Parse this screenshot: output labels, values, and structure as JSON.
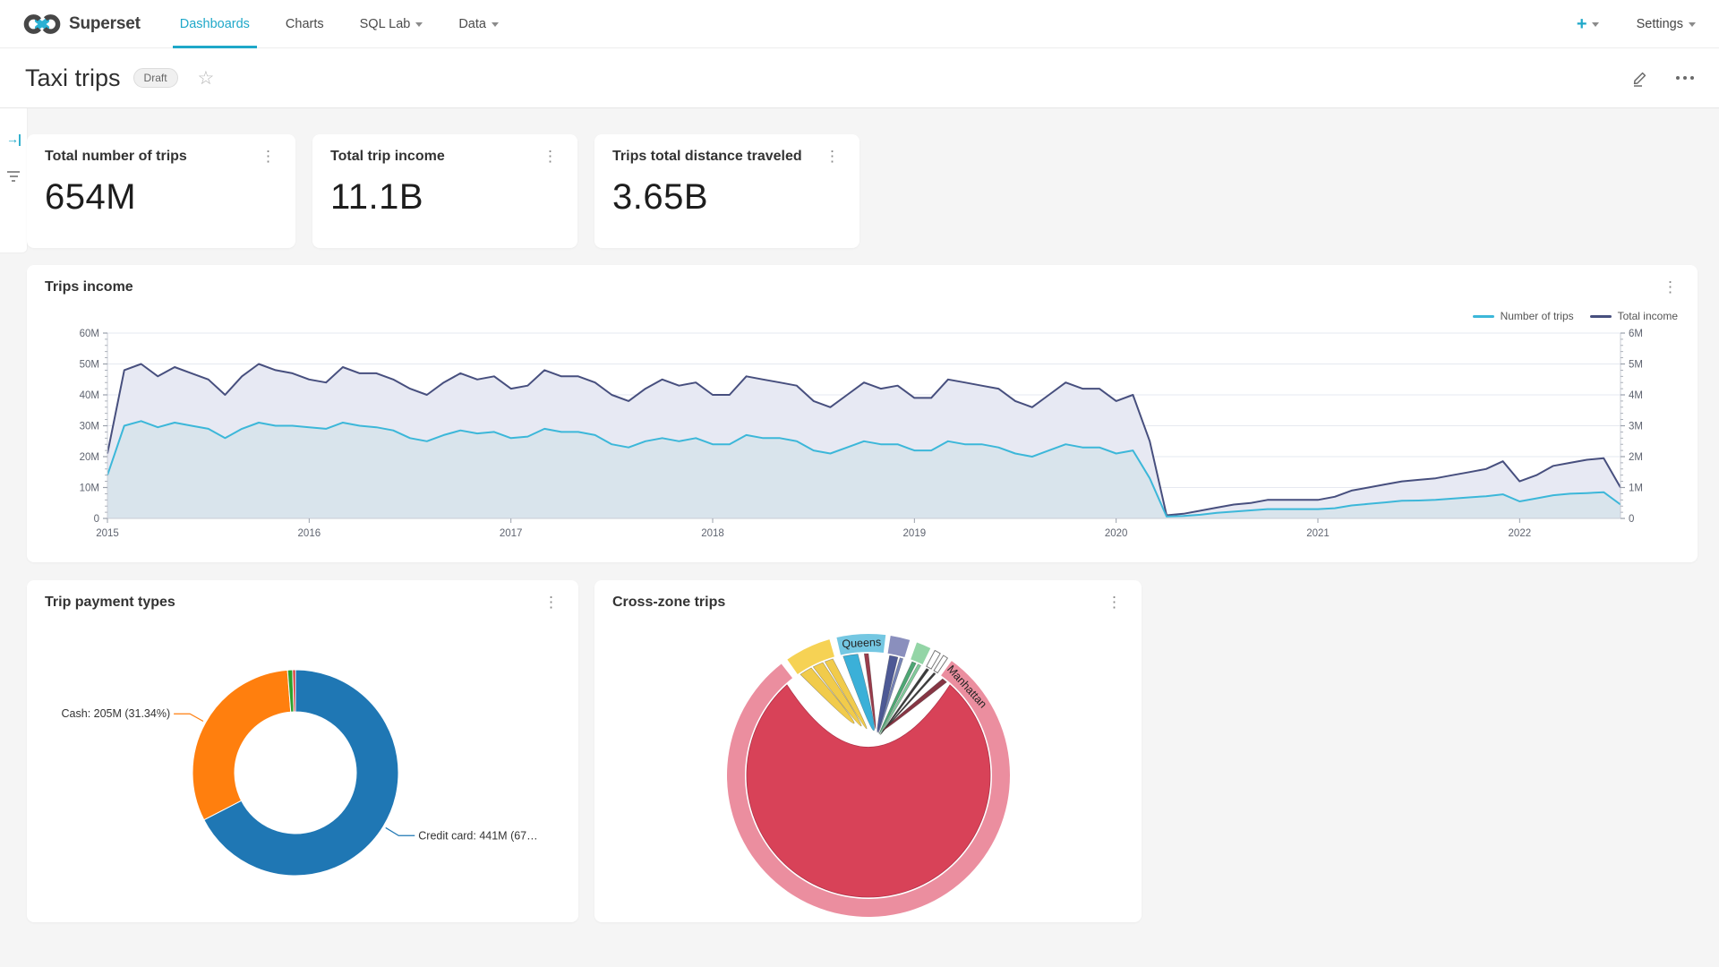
{
  "nav": {
    "brand": "Superset",
    "items": [
      {
        "label": "Dashboards",
        "active": true,
        "caret": false
      },
      {
        "label": "Charts",
        "active": false,
        "caret": false
      },
      {
        "label": "SQL Lab",
        "active": false,
        "caret": true
      },
      {
        "label": "Data",
        "active": false,
        "caret": true
      }
    ],
    "plus_label": "+",
    "settings_label": "Settings"
  },
  "header": {
    "title": "Taxi trips",
    "status_badge": "Draft"
  },
  "icons": {
    "kebab": "⋮",
    "star": "☆",
    "expand": "→|"
  },
  "colors": {
    "accent": "#1fa8c9",
    "card_bg": "#ffffff",
    "page_bg": "#f5f5f5"
  },
  "kpis": [
    {
      "title": "Total number of trips",
      "value": "654M"
    },
    {
      "title": "Total trip income",
      "value": "11.1B"
    },
    {
      "title": "Trips total distance traveled",
      "value": "3.65B"
    }
  ],
  "trips_income_card": {
    "title": "Trips income"
  },
  "payment_card": {
    "title": "Trip payment types"
  },
  "crosszone_card": {
    "title": "Cross-zone trips"
  },
  "chart_data": [
    {
      "id": "trips_income",
      "type": "line",
      "title": "Trips income",
      "x_tick_labels": [
        "2015",
        "2016",
        "2017",
        "2018",
        "2019",
        "2020",
        "2021",
        "2022"
      ],
      "x_tick_index": [
        0,
        12,
        24,
        36,
        48,
        60,
        72,
        84
      ],
      "y_left": {
        "min": 0,
        "max": 60,
        "ticks": [
          "0",
          "10M",
          "20M",
          "30M",
          "40M",
          "50M",
          "60M"
        ]
      },
      "y_right": {
        "min": 0,
        "max": 6,
        "ticks": [
          "0",
          "1M",
          "2M",
          "3M",
          "4M",
          "5M",
          "6M"
        ]
      },
      "legend_position": "top-right",
      "grid": true,
      "series": [
        {
          "name": "Number of trips",
          "axis": "right",
          "color": "#3cb7d9",
          "fill": "#d9e4ec",
          "values": [
            1.4,
            3.0,
            3.15,
            2.95,
            3.1,
            3.0,
            2.9,
            2.6,
            2.9,
            3.1,
            3.0,
            3.0,
            2.95,
            2.9,
            3.1,
            3.0,
            2.95,
            2.85,
            2.6,
            2.5,
            2.7,
            2.85,
            2.75,
            2.8,
            2.6,
            2.65,
            2.9,
            2.8,
            2.8,
            2.7,
            2.4,
            2.3,
            2.5,
            2.6,
            2.5,
            2.6,
            2.4,
            2.4,
            2.7,
            2.6,
            2.6,
            2.5,
            2.2,
            2.1,
            2.3,
            2.5,
            2.4,
            2.4,
            2.2,
            2.2,
            2.5,
            2.4,
            2.4,
            2.3,
            2.1,
            2.0,
            2.2,
            2.4,
            2.3,
            2.3,
            2.1,
            2.2,
            1.3,
            0.06,
            0.08,
            0.12,
            0.18,
            0.22,
            0.26,
            0.3,
            0.3,
            0.3,
            0.3,
            0.33,
            0.42,
            0.47,
            0.52,
            0.57,
            0.58,
            0.6,
            0.64,
            0.68,
            0.72,
            0.78,
            0.55,
            0.65,
            0.75,
            0.8,
            0.82,
            0.85,
            0.45
          ]
        },
        {
          "name": "Total income",
          "axis": "left",
          "color": "#474f7e",
          "fill": "#e7e9f3",
          "values": [
            21,
            48,
            50,
            46,
            49,
            47,
            45,
            40,
            46,
            50,
            48,
            47,
            45,
            44,
            49,
            47,
            47,
            45,
            42,
            40,
            44,
            47,
            45,
            46,
            42,
            43,
            48,
            46,
            46,
            44,
            40,
            38,
            42,
            45,
            43,
            44,
            40,
            40,
            46,
            45,
            44,
            43,
            38,
            36,
            40,
            44,
            42,
            43,
            39,
            39,
            45,
            44,
            43,
            42,
            38,
            36,
            40,
            44,
            42,
            42,
            38,
            40,
            25,
            1,
            1.5,
            2.5,
            3.5,
            4.5,
            5,
            6,
            6,
            6,
            6,
            7,
            9,
            10,
            11,
            12,
            12.5,
            13,
            14,
            15,
            16,
            18.5,
            12,
            14,
            17,
            18,
            19,
            19.5,
            10
          ]
        }
      ]
    },
    {
      "id": "trip_payment_types",
      "type": "pie",
      "title": "Trip payment types",
      "donut": true,
      "slices": [
        {
          "label": "Credit card",
          "value_label": "441M",
          "pct": 67.43,
          "color": "#1f77b4",
          "callout": "Credit card: 441M (67…"
        },
        {
          "label": "Cash",
          "value_label": "205M",
          "pct": 31.34,
          "color": "#ff7f0e",
          "callout": "Cash: 205M (31.34%)"
        },
        {
          "label": "",
          "pct": 0.8,
          "color": "#2ca02c"
        },
        {
          "label": "",
          "pct": 0.43,
          "color": "#d62728"
        }
      ]
    },
    {
      "id": "cross_zone_trips",
      "type": "chord",
      "title": "Cross-zone trips",
      "arcs": [
        {
          "name": "Manhattan",
          "color": "#eb8e9f",
          "start": 36,
          "end": 322,
          "label": true,
          "label_angle": 48
        },
        {
          "name": "",
          "color": "#f6d254",
          "start": -35,
          "end": -16
        },
        {
          "name": "Queens",
          "color": "#74c7e2",
          "start": -13,
          "end": 7,
          "label": true,
          "label_angle": -3
        },
        {
          "name": "",
          "color": "#8a8fbd",
          "start": 9,
          "end": 17
        },
        {
          "name": "",
          "color": "#93d5a6",
          "start": 20,
          "end": 26
        },
        {
          "name": "",
          "color": "#ffffff",
          "start": 28,
          "end": 30.5,
          "stroke": "#777777"
        },
        {
          "name": "",
          "color": "#ffffff",
          "start": 32,
          "end": 34,
          "stroke": "#777777"
        }
      ],
      "self_chord": {
        "name": "Manhattan-Manhattan",
        "color": "#d84258",
        "start": 42,
        "end": 318
      },
      "ribbons": [
        {
          "a0": -34,
          "a1": -28,
          "color": "#f0c73c",
          "fx": -16,
          "fy": -58
        },
        {
          "a0": -27,
          "a1": -22,
          "color": "#f0c73c",
          "fx": -8,
          "fy": -55
        },
        {
          "a0": -21,
          "a1": -17,
          "color": "#f0c73c",
          "fx": -2,
          "fy": -52
        },
        {
          "a0": -12,
          "a1": -5,
          "color": "#2aa9d5",
          "fx": 6,
          "fy": -50
        },
        {
          "a0": -2,
          "a1": 0,
          "color": "#8f2b3c",
          "fx": 8,
          "fy": -52
        },
        {
          "a0": 10,
          "a1": 14,
          "color": "#3e4b8c",
          "fx": 10,
          "fy": -48
        },
        {
          "a0": 15,
          "a1": 16.5,
          "color": "#6a7ab0",
          "fx": 11,
          "fy": -47
        },
        {
          "a0": 21,
          "a1": 23,
          "color": "#3f9f68",
          "fx": 12,
          "fy": -46
        },
        {
          "a0": 24,
          "a1": 25.5,
          "color": "#77c693",
          "fx": 13,
          "fy": -45
        },
        {
          "a0": 28.5,
          "a1": 29.8,
          "color": "#2b2b2b",
          "fx": 14,
          "fy": -46
        },
        {
          "a0": 32.5,
          "a1": 33.5,
          "color": "#2b2b2b",
          "fx": 15,
          "fy": -48
        },
        {
          "a0": 37.5,
          "a1": 40,
          "color": "#7c2534",
          "fx": 16,
          "fy": -50
        }
      ]
    }
  ]
}
